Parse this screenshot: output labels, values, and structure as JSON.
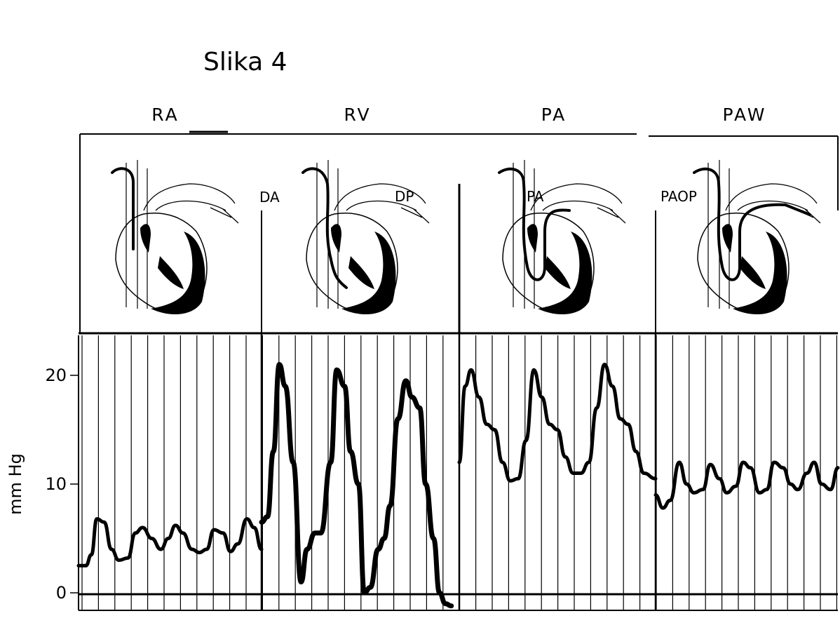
{
  "figure": {
    "title": "Slika 4",
    "panels": [
      {
        "header": "RA",
        "position_label": ""
      },
      {
        "header": "RV",
        "position_label": ""
      },
      {
        "header": "PA",
        "position_label": "PA"
      },
      {
        "header": "PAW",
        "position_label": "PAOP"
      }
    ],
    "boundary_labels": [
      "DA",
      "DP"
    ]
  },
  "chart_data": {
    "type": "line",
    "ylabel": "mm Hg",
    "yticks": [
      0,
      10,
      20
    ],
    "ylim": [
      -2,
      25
    ],
    "grid": "vertical lines",
    "segments": [
      {
        "x": [
          0.0,
          0.04,
          0.07,
          0.1,
          0.14,
          0.18,
          0.22,
          0.27,
          0.31,
          0.35,
          0.4,
          0.45,
          0.49,
          0.53,
          0.57,
          0.62,
          0.66,
          0.7,
          0.74,
          0.79,
          0.83,
          0.87,
          0.92,
          0.96,
          1.0
        ],
        "y": [
          2.5,
          2.5,
          3.5,
          6.8,
          6.5,
          4,
          3,
          3.2,
          5.5,
          6,
          5,
          4,
          5,
          6.2,
          5.5,
          4,
          3.7,
          4,
          5.8,
          5.5,
          3.8,
          4.5,
          6.8,
          6,
          4
        ]
      },
      {
        "x": [
          1.0,
          1.03,
          1.06,
          1.09,
          1.12,
          1.16,
          1.2,
          1.23,
          1.27,
          1.3,
          1.35,
          1.38,
          1.42,
          1.45,
          1.49,
          1.52,
          1.55,
          1.59,
          1.62,
          1.65,
          1.69,
          1.73,
          1.76,
          1.8,
          1.83,
          1.87,
          1.9,
          1.93,
          1.96
        ],
        "y": [
          6.5,
          7,
          13,
          21,
          19,
          12,
          1,
          4,
          5.5,
          5.5,
          12,
          20.5,
          19,
          13,
          10,
          0,
          0.5,
          4,
          5,
          8,
          16,
          19.5,
          18,
          17,
          10,
          5,
          0,
          -1,
          -1.2
        ]
      },
      {
        "x": [
          2.0,
          2.03,
          2.06,
          2.1,
          2.14,
          2.18,
          2.22,
          2.26,
          2.3,
          2.34,
          2.38,
          2.42,
          2.46,
          2.5,
          2.54,
          2.58,
          2.62,
          2.66,
          2.7,
          2.74,
          2.78,
          2.82,
          2.86,
          2.9,
          2.94,
          3.0
        ],
        "y": [
          12,
          19,
          20.5,
          18,
          15.5,
          15,
          12,
          10.3,
          10.5,
          14,
          20.5,
          18,
          15.5,
          15,
          12.5,
          11,
          11,
          12,
          17,
          21,
          19,
          16,
          15.5,
          13,
          11,
          10.5
        ]
      },
      {
        "x": [
          3.0,
          3.04,
          3.08,
          3.13,
          3.17,
          3.21,
          3.26,
          3.3,
          3.35,
          3.39,
          3.44,
          3.48,
          3.52,
          3.57,
          3.61,
          3.65,
          3.7,
          3.74,
          3.78,
          3.83,
          3.87,
          3.91,
          3.96,
          4.0
        ],
        "y": [
          9,
          7.8,
          8.5,
          12,
          10,
          9.2,
          9.5,
          11.8,
          10.5,
          9.2,
          9.8,
          12,
          11.5,
          9.2,
          9.5,
          12,
          11.5,
          10,
          9.5,
          11,
          12,
          10,
          9.5,
          11.5
        ]
      }
    ]
  }
}
